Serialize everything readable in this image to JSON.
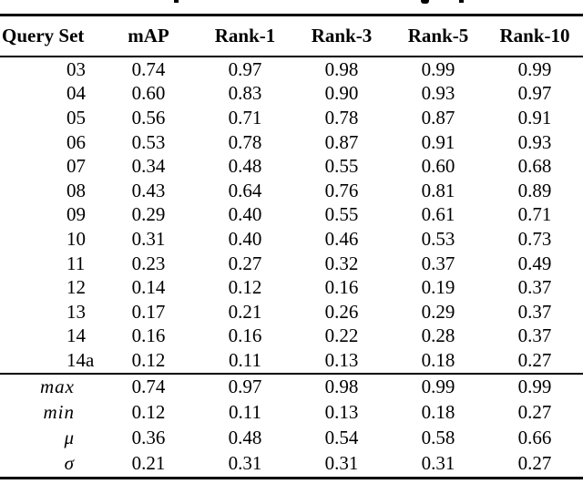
{
  "colors": {
    "text": "#000000",
    "rule": "#000000",
    "background": "#ffffff"
  },
  "table": {
    "columns": [
      "Query Set",
      "mAP",
      "Rank-1",
      "Rank-3",
      "Rank-5",
      "Rank-10"
    ],
    "rows": [
      {
        "query_set": "03",
        "values": [
          "0.74",
          "0.97",
          "0.98",
          "0.99",
          "0.99"
        ]
      },
      {
        "query_set": "04",
        "values": [
          "0.60",
          "0.83",
          "0.90",
          "0.93",
          "0.97"
        ]
      },
      {
        "query_set": "05",
        "values": [
          "0.56",
          "0.71",
          "0.78",
          "0.87",
          "0.91"
        ]
      },
      {
        "query_set": "06",
        "values": [
          "0.53",
          "0.78",
          "0.87",
          "0.91",
          "0.93"
        ]
      },
      {
        "query_set": "07",
        "values": [
          "0.34",
          "0.48",
          "0.55",
          "0.60",
          "0.68"
        ]
      },
      {
        "query_set": "08",
        "values": [
          "0.43",
          "0.64",
          "0.76",
          "0.81",
          "0.89"
        ]
      },
      {
        "query_set": "09",
        "values": [
          "0.29",
          "0.40",
          "0.55",
          "0.61",
          "0.71"
        ]
      },
      {
        "query_set": "10",
        "values": [
          "0.31",
          "0.40",
          "0.46",
          "0.53",
          "0.73"
        ]
      },
      {
        "query_set": "11",
        "values": [
          "0.23",
          "0.27",
          "0.32",
          "0.37",
          "0.49"
        ]
      },
      {
        "query_set": "12",
        "values": [
          "0.14",
          "0.12",
          "0.16",
          "0.19",
          "0.37"
        ]
      },
      {
        "query_set": "13",
        "values": [
          "0.17",
          "0.21",
          "0.26",
          "0.29",
          "0.37"
        ]
      },
      {
        "query_set": "14",
        "values": [
          "0.16",
          "0.16",
          "0.22",
          "0.28",
          "0.37"
        ]
      },
      {
        "query_set": "14a",
        "values": [
          "0.12",
          "0.11",
          "0.13",
          "0.18",
          "0.27"
        ]
      }
    ],
    "summary_rows": [
      {
        "label": "max",
        "values": [
          "0.74",
          "0.97",
          "0.98",
          "0.99",
          "0.99"
        ]
      },
      {
        "label": "min",
        "values": [
          "0.12",
          "0.11",
          "0.13",
          "0.18",
          "0.27"
        ]
      },
      {
        "label": "μ",
        "values": [
          "0.36",
          "0.48",
          "0.54",
          "0.58",
          "0.66"
        ]
      },
      {
        "label": "σ",
        "values": [
          "0.21",
          "0.31",
          "0.31",
          "0.31",
          "0.27"
        ]
      }
    ]
  }
}
